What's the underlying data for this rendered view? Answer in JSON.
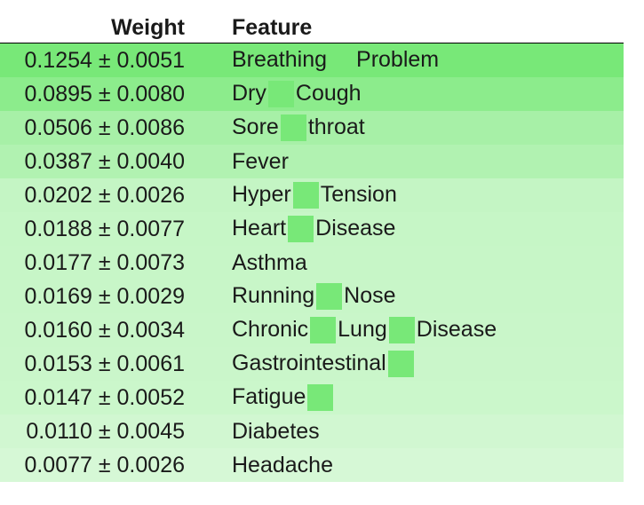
{
  "chart_data": {
    "type": "table",
    "columns": [
      "Weight",
      "Feature"
    ],
    "rows": [
      {
        "weight": 0.1254,
        "std": 0.0051,
        "weight_text": "0.1254 ± 0.0051",
        "feature_parts": [
          "Breathing",
          "Problem"
        ]
      },
      {
        "weight": 0.0895,
        "std": 0.008,
        "weight_text": "0.0895 ± 0.0080",
        "feature_parts": [
          "Dry",
          "Cough"
        ]
      },
      {
        "weight": 0.0506,
        "std": 0.0086,
        "weight_text": "0.0506 ± 0.0086",
        "feature_parts": [
          "Sore",
          "throat"
        ]
      },
      {
        "weight": 0.0387,
        "std": 0.004,
        "weight_text": "0.0387 ± 0.0040",
        "feature_parts": [
          "Fever"
        ]
      },
      {
        "weight": 0.0202,
        "std": 0.0026,
        "weight_text": "0.0202 ± 0.0026",
        "feature_parts": [
          "Hyper",
          "Tension"
        ]
      },
      {
        "weight": 0.0188,
        "std": 0.0077,
        "weight_text": "0.0188 ± 0.0077",
        "feature_parts": [
          "Heart",
          "Disease"
        ]
      },
      {
        "weight": 0.0177,
        "std": 0.0073,
        "weight_text": "0.0177 ± 0.0073",
        "feature_parts": [
          "Asthma"
        ]
      },
      {
        "weight": 0.0169,
        "std": 0.0029,
        "weight_text": "0.0169 ± 0.0029",
        "feature_parts": [
          "Running",
          "Nose"
        ]
      },
      {
        "weight": 0.016,
        "std": 0.0034,
        "weight_text": "0.0160 ± 0.0034",
        "feature_parts": [
          "Chronic",
          "Lung",
          "Disease"
        ]
      },
      {
        "weight": 0.0153,
        "std": 0.0061,
        "weight_text": "0.0153 ± 0.0061",
        "feature_parts": [
          "Gastrointestinal",
          ""
        ]
      },
      {
        "weight": 0.0147,
        "std": 0.0052,
        "weight_text": "0.0147 ± 0.0052",
        "feature_parts": [
          "Fatigue",
          ""
        ]
      },
      {
        "weight": 0.011,
        "std": 0.0045,
        "weight_text": "0.0110 ± 0.0045",
        "feature_parts": [
          "Diabetes"
        ]
      },
      {
        "weight": 0.0077,
        "std": 0.0026,
        "weight_text": "0.0077 ± 0.0026",
        "feature_parts": [
          "Headache"
        ]
      }
    ]
  },
  "colors": {
    "max_green": "#78e878",
    "min_green": "#f0fdf0",
    "gap_marker": "#78e878"
  }
}
